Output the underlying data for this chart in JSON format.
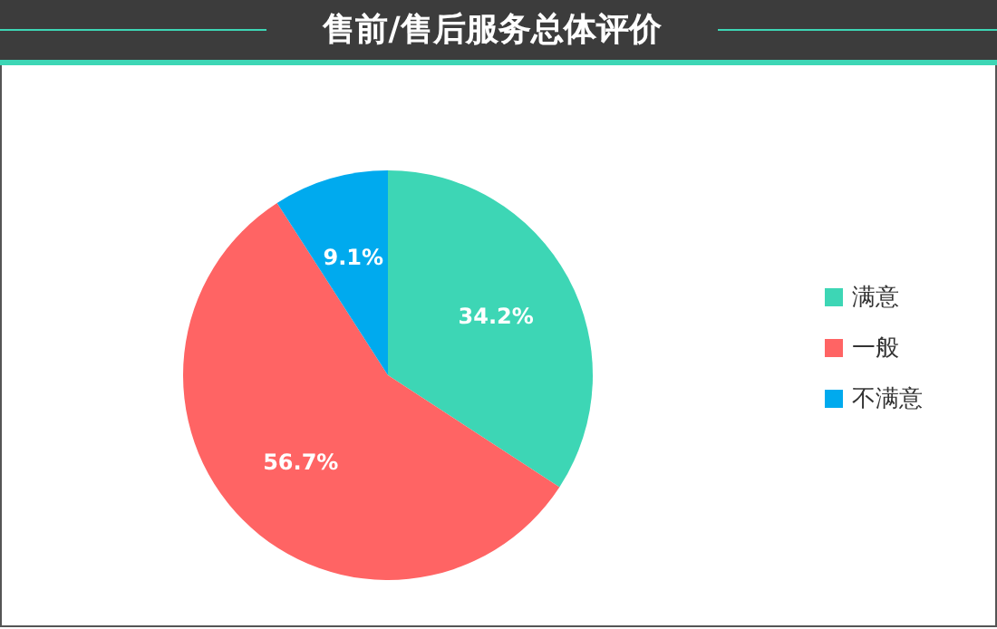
{
  "chart_data": {
    "type": "pie",
    "title": "售前/售后服务总体评价",
    "categories": [
      "满意",
      "一般",
      "不满意"
    ],
    "values": [
      34.2,
      56.7,
      9.1
    ],
    "colors": [
      "#3dd6b5",
      "#ff6464",
      "#00aaee"
    ],
    "value_labels": [
      "34.2%",
      "56.7%",
      "9.1%"
    ],
    "legend": "right"
  }
}
